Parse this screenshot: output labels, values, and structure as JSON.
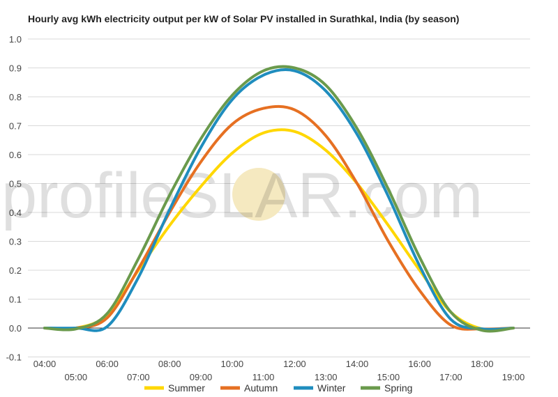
{
  "chart_data": {
    "type": "line",
    "title": "Hourly avg kWh electricity output per kW of Solar PV installed in Surathkal, India (by season)",
    "xlabel": "",
    "ylabel": "",
    "ylim": [
      -0.1,
      1.0
    ],
    "yticks": [
      "-0.1",
      "0.0",
      "0.1",
      "0.2",
      "0.3",
      "0.4",
      "0.5",
      "0.6",
      "0.7",
      "0.8",
      "0.9",
      "1.0"
    ],
    "xticks": [
      "04:00",
      "05:00",
      "06:00",
      "07:00",
      "08:00",
      "09:00",
      "10:00",
      "11:00",
      "12:00",
      "13:00",
      "14:00",
      "15:00",
      "16:00",
      "17:00",
      "18:00",
      "19:00"
    ],
    "grid": true,
    "legend_position": "bottom",
    "x": [
      "04:00",
      "05:00",
      "06:00",
      "07:00",
      "08:00",
      "09:00",
      "10:00",
      "11:00",
      "12:00",
      "13:00",
      "14:00",
      "15:00",
      "16:00",
      "17:00",
      "18:00",
      "19:00"
    ],
    "series": [
      {
        "name": "Summer",
        "color": "#FFD700",
        "values": [
          0.0,
          0.0,
          0.045,
          0.2,
          0.355,
          0.49,
          0.605,
          0.675,
          0.68,
          0.615,
          0.5,
          0.355,
          0.2,
          0.055,
          -0.003,
          0.0
        ]
      },
      {
        "name": "Autumn",
        "color": "#E67022",
        "values": [
          0.0,
          0.0,
          0.035,
          0.205,
          0.4,
          0.575,
          0.705,
          0.76,
          0.755,
          0.665,
          0.5,
          0.3,
          0.13,
          0.01,
          -0.003,
          0.0
        ]
      },
      {
        "name": "Winter",
        "color": "#1F8DBE",
        "values": [
          0.0,
          0.0,
          0.005,
          0.175,
          0.41,
          0.625,
          0.79,
          0.875,
          0.89,
          0.82,
          0.67,
          0.455,
          0.215,
          0.03,
          -0.003,
          0.0
        ]
      },
      {
        "name": "Spring",
        "color": "#6A9A4C",
        "values": [
          0.0,
          -0.003,
          0.05,
          0.24,
          0.46,
          0.655,
          0.805,
          0.89,
          0.9,
          0.84,
          0.69,
          0.48,
          0.245,
          0.055,
          -0.008,
          0.0
        ]
      }
    ]
  },
  "watermark": {
    "text_left": "profile",
    "text_s": "S",
    "text_right": "LAR.com",
    "sun_color": "#F5E9C0"
  }
}
